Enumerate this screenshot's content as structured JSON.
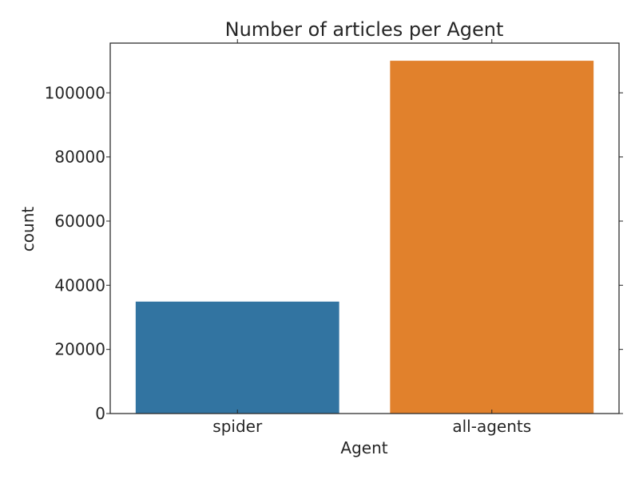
{
  "chart_data": {
    "type": "bar",
    "title": "Number of articles per Agent",
    "xlabel": "Agent",
    "ylabel": "count",
    "categories": [
      "spider",
      "all-agents"
    ],
    "values": [
      34900,
      110000
    ],
    "colors": [
      "#3274a1",
      "#e1812c"
    ],
    "ylim": [
      0,
      115500
    ],
    "yticks": [
      0,
      20000,
      40000,
      60000,
      80000,
      100000
    ],
    "ytick_labels": [
      "0",
      "20000",
      "40000",
      "60000",
      "80000",
      "100000"
    ],
    "grid": false,
    "legend": "none"
  }
}
